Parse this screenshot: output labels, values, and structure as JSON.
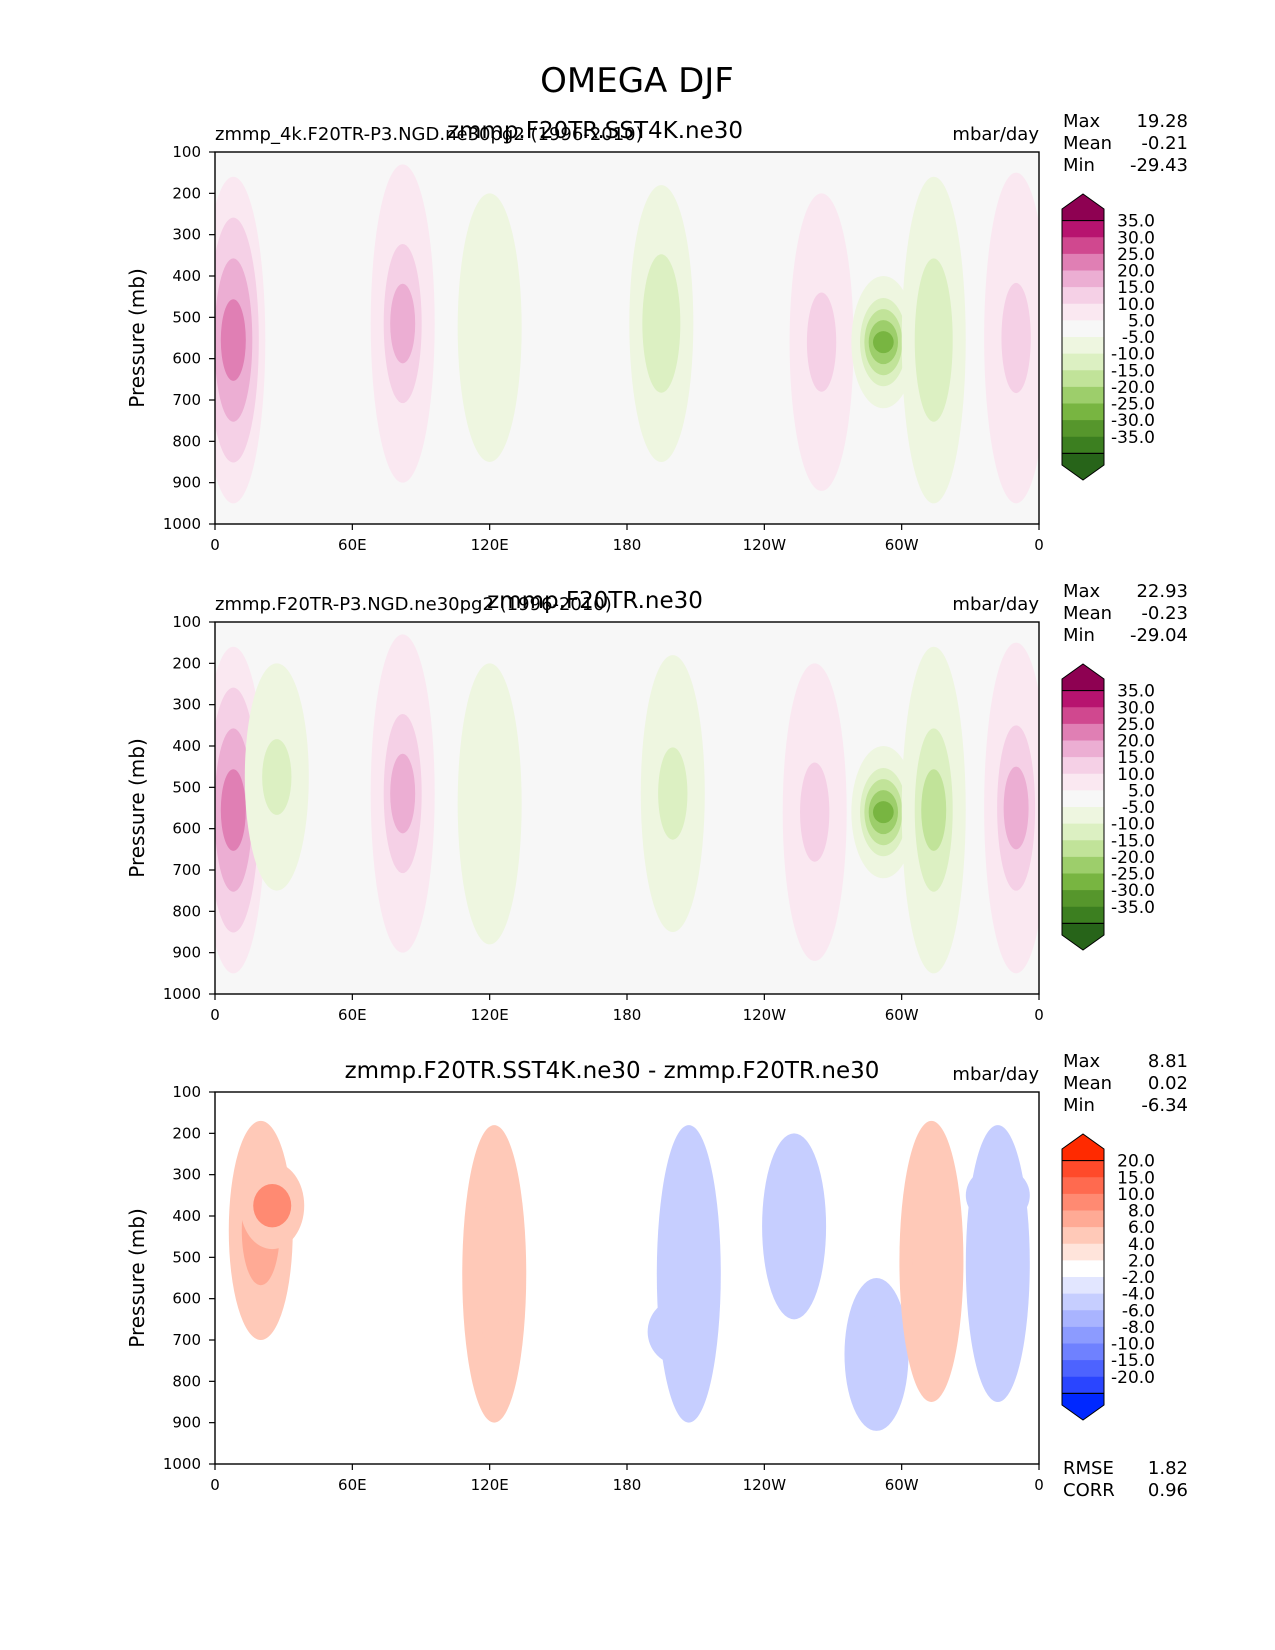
{
  "figure_title": "OMEGA DJF",
  "chart_data": [
    {
      "type": "contour",
      "panel": "test",
      "left_label": "zmmp_4k.F20TR-P3.NGD.ne30pg2 (1996-2010)",
      "title": "zmmp.F20TR.SST4K.ne30",
      "units": "mbar/day",
      "ylabel": "Pressure (mb)",
      "xlabel": "",
      "x_ticks": [
        "0",
        "60E",
        "120E",
        "180",
        "120W",
        "60W",
        "0"
      ],
      "y_ticks": [
        "100",
        "200",
        "300",
        "400",
        "500",
        "600",
        "700",
        "800",
        "900",
        "1000"
      ],
      "ylim": [
        1000,
        100
      ],
      "xlim": [
        0,
        360
      ],
      "stats": [
        {
          "label": "Max",
          "value": "19.28"
        },
        {
          "label": "Mean",
          "value": "-0.21"
        },
        {
          "label": "Min",
          "value": "-29.43"
        }
      ],
      "colorbar": {
        "levels": [
          "35.0",
          "30.0",
          "25.0",
          "20.0",
          "15.0",
          "10.0",
          "5.0",
          "-5.0",
          "-10.0",
          "-15.0",
          "-20.0",
          "-25.0",
          "-30.0",
          "-35.0"
        ],
        "colors": [
          "#8e0152",
          "#b7136f",
          "#d0488f",
          "#e07fb4",
          "#ecaed3",
          "#f5d0e6",
          "#fae8f1",
          "#f7f7f7",
          "#eef6e0",
          "#dcf0c2",
          "#c1e399",
          "#9dce6b",
          "#78b541",
          "#56962c",
          "#3c7f20",
          "#276419"
        ]
      },
      "features": [
        {
          "lon": 8,
          "p_top": 160,
          "p_bot": 950,
          "value": 20
        },
        {
          "lon": 82,
          "p_top": 130,
          "p_bot": 900,
          "value": 15
        },
        {
          "lon": 120,
          "p_top": 200,
          "p_bot": 850,
          "value": -10
        },
        {
          "lon": 195,
          "p_top": 180,
          "p_bot": 850,
          "value": -15
        },
        {
          "lon": 265,
          "p_top": 200,
          "p_bot": 920,
          "value": 12
        },
        {
          "lon": 292,
          "p_top": 400,
          "p_bot": 720,
          "value": -30
        },
        {
          "lon": 314,
          "p_top": 160,
          "p_bot": 950,
          "value": -15
        },
        {
          "lon": 350,
          "p_top": 150,
          "p_bot": 950,
          "value": 14
        }
      ]
    },
    {
      "type": "contour",
      "panel": "reference",
      "left_label": "zmmp.F20TR-P3.NGD.ne30pg2 (1996-2010)",
      "title": "zmmp.F20TR.ne30",
      "units": "mbar/day",
      "ylabel": "Pressure (mb)",
      "xlabel": "",
      "x_ticks": [
        "0",
        "60E",
        "120E",
        "180",
        "120W",
        "60W",
        "0"
      ],
      "y_ticks": [
        "100",
        "200",
        "300",
        "400",
        "500",
        "600",
        "700",
        "800",
        "900",
        "1000"
      ],
      "ylim": [
        1000,
        100
      ],
      "xlim": [
        0,
        360
      ],
      "stats": [
        {
          "label": "Max",
          "value": "22.93"
        },
        {
          "label": "Mean",
          "value": "-0.23"
        },
        {
          "label": "Min",
          "value": "-29.04"
        }
      ],
      "colorbar": {
        "levels": [
          "35.0",
          "30.0",
          "25.0",
          "20.0",
          "15.0",
          "10.0",
          "5.0",
          "-5.0",
          "-10.0",
          "-15.0",
          "-20.0",
          "-25.0",
          "-30.0",
          "-35.0"
        ],
        "colors": [
          "#8e0152",
          "#b7136f",
          "#d0488f",
          "#e07fb4",
          "#ecaed3",
          "#f5d0e6",
          "#fae8f1",
          "#f7f7f7",
          "#eef6e0",
          "#dcf0c2",
          "#c1e399",
          "#9dce6b",
          "#78b541",
          "#56962c",
          "#3c7f20",
          "#276419"
        ]
      },
      "features": [
        {
          "lon": 8,
          "p_top": 160,
          "p_bot": 950,
          "value": 20
        },
        {
          "lon": 27,
          "p_top": 200,
          "p_bot": 750,
          "value": -12
        },
        {
          "lon": 82,
          "p_top": 130,
          "p_bot": 900,
          "value": 18
        },
        {
          "lon": 120,
          "p_top": 200,
          "p_bot": 880,
          "value": -10
        },
        {
          "lon": 200,
          "p_top": 180,
          "p_bot": 850,
          "value": -12
        },
        {
          "lon": 262,
          "p_top": 200,
          "p_bot": 920,
          "value": 12
        },
        {
          "lon": 292,
          "p_top": 400,
          "p_bot": 720,
          "value": -28
        },
        {
          "lon": 314,
          "p_top": 160,
          "p_bot": 950,
          "value": -18
        },
        {
          "lon": 350,
          "p_top": 150,
          "p_bot": 950,
          "value": 15
        }
      ]
    },
    {
      "type": "contour",
      "panel": "difference",
      "left_label": "",
      "title": "zmmp.F20TR.SST4K.ne30 - zmmp.F20TR.ne30",
      "units": "mbar/day",
      "ylabel": "Pressure (mb)",
      "xlabel": "",
      "x_ticks": [
        "0",
        "60E",
        "120E",
        "180",
        "120W",
        "60W",
        "0"
      ],
      "y_ticks": [
        "100",
        "200",
        "300",
        "400",
        "500",
        "600",
        "700",
        "800",
        "900",
        "1000"
      ],
      "ylim": [
        1000,
        100
      ],
      "xlim": [
        0,
        360
      ],
      "stats": [
        {
          "label": "Max",
          "value": "8.81"
        },
        {
          "label": "Mean",
          "value": "0.02"
        },
        {
          "label": "Min",
          "value": "-6.34"
        }
      ],
      "metrics": [
        {
          "label": "RMSE",
          "value": "1.82"
        },
        {
          "label": "CORR",
          "value": "0.96"
        }
      ],
      "colorbar": {
        "levels": [
          "20.0",
          "15.0",
          "10.0",
          "8.0",
          "6.0",
          "4.0",
          "2.0",
          "-2.0",
          "-4.0",
          "-6.0",
          "-8.0",
          "-10.0",
          "-15.0",
          "-20.0"
        ],
        "colors": [
          "#ff2a00",
          "#ff4a2a",
          "#ff6a4f",
          "#ff8a72",
          "#ffaa95",
          "#ffc9b8",
          "#ffe4db",
          "#ffffff",
          "#e2e6ff",
          "#c6ceff",
          "#a9b4ff",
          "#8c9bff",
          "#6f81ff",
          "#4d63ff",
          "#2a45ff",
          "#0028ff"
        ]
      },
      "features": [
        {
          "lon": 20,
          "p_top": 170,
          "p_bot": 700,
          "value": 6
        },
        {
          "lon": 25,
          "p_top": 270,
          "p_bot": 480,
          "value": 8
        },
        {
          "lon": 122,
          "p_top": 180,
          "p_bot": 900,
          "value": 4
        },
        {
          "lon": 207,
          "p_top": 180,
          "p_bot": 900,
          "value": -3
        },
        {
          "lon": 203,
          "p_top": 600,
          "p_bot": 760,
          "value": -5
        },
        {
          "lon": 253,
          "p_top": 200,
          "p_bot": 650,
          "value": -2
        },
        {
          "lon": 289,
          "p_top": 550,
          "p_bot": 920,
          "value": -3
        },
        {
          "lon": 313,
          "p_top": 170,
          "p_bot": 850,
          "value": 3
        },
        {
          "lon": 342,
          "p_top": 180,
          "p_bot": 850,
          "value": -3
        },
        {
          "lon": 342,
          "p_top": 280,
          "p_bot": 420,
          "value": -5
        }
      ]
    }
  ]
}
